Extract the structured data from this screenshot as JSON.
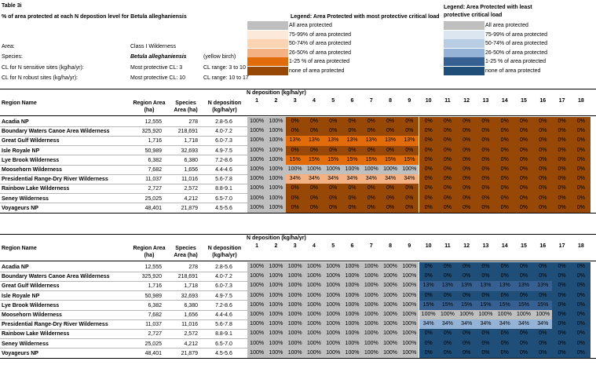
{
  "table_id": "Table 3i",
  "title": "% of area  protected at each N depostion level for Betula alleghaniensis",
  "meta": {
    "area_label": "Area:",
    "area_value": "Class I Wilderness",
    "species_label": "Species:",
    "species_sci": "Betula alleghaniensis",
    "species_common": "(yellow birch)",
    "cl_sensitive_label": "CL for N sensitive sites (kg/ha/yr):",
    "cl_sensitive_value": "Most protective  CL:  3",
    "cl_sensitive_range": "CL range:  3 to 10",
    "cl_robust_label": "CL for N robust sites (kg/ha/yr):",
    "cl_robust_value": "Most protective CL:  10",
    "cl_robust_range": "CL range:   10 to 17"
  },
  "legend_most": {
    "title": "Legend: Area  Protected with most protective critical  load",
    "items": [
      {
        "label": "All area  protected",
        "color": "#bfbfbf"
      },
      {
        "label": "75-99% of area protected",
        "color": "#fde9d9"
      },
      {
        "label": "50-74% of area protected",
        "color": "#fbd4b4"
      },
      {
        "label": "26-50% of area protected",
        "color": "#f4b183"
      },
      {
        "label": "1-25 % of area protected",
        "color": "#e26b0a"
      },
      {
        "label": "none of area  protected",
        "color": "#974706"
      }
    ]
  },
  "legend_least": {
    "title_line1": "Legend: Area  Protected with least",
    "title_line2": "protective critical  load",
    "items": [
      {
        "label": "All area  protected",
        "color": "#bfbfbf"
      },
      {
        "label": "75-99% of area protected",
        "color": "#dce6f1"
      },
      {
        "label": "50-74% of area protected",
        "color": "#b8cce4"
      },
      {
        "label": "26-50% of area protected",
        "color": "#95b3d7"
      },
      {
        "label": "1-25 % of area protected",
        "color": "#366092"
      },
      {
        "label": "none of area  protected",
        "color": "#1f4e79"
      }
    ]
  },
  "headers": {
    "region": "Region Name",
    "region_area_1": "Region Area",
    "region_area_2": "(ha)",
    "species_area_1": "Species",
    "species_area_2": "Area (ha)",
    "ndep_1": "N deposition",
    "ndep_2": "(kg/ha/yr)",
    "ndep_group": "N deposition  (kg/ha/yr)"
  },
  "n_levels": [
    "1",
    "2",
    "3",
    "4",
    "5",
    "6",
    "7",
    "8",
    "9",
    "10",
    "11",
    "12",
    "13",
    "14",
    "15",
    "16",
    "17",
    "18"
  ],
  "regions": [
    {
      "name": "Acadia  NP",
      "area": "12,555",
      "species_area": "278",
      "ndep": "2.8-5.6"
    },
    {
      "name": "Boundary Waters Canoe Area  Wilderness",
      "area": "325,920",
      "species_area": "218,691",
      "ndep": "4.0-7.2"
    },
    {
      "name": "Great Gulf Wilderness",
      "area": "1,716",
      "species_area": "1,718",
      "ndep": "6.0-7.3"
    },
    {
      "name": "Isle Royale  NP",
      "area": "50,989",
      "species_area": "32,693",
      "ndep": "4.9-7.5"
    },
    {
      "name": "Lye Brook Wilderness",
      "area": "6,382",
      "species_area": "6,380",
      "ndep": "7.2-8.6"
    },
    {
      "name": "Moosehorn Wilderness",
      "area": "7,682",
      "species_area": "1,656",
      "ndep": "4.4-4.6"
    },
    {
      "name": "Presidential Range-Dry  River Wilderness",
      "area": "11,037",
      "species_area": "11,016",
      "ndep": "5.6-7.8"
    },
    {
      "name": "Rainbow Lake Wilderness",
      "area": "2,727",
      "species_area": "2,572",
      "ndep": "8.8-9.1"
    },
    {
      "name": "Seney Wilderness",
      "area": "25,025",
      "species_area": "4,212",
      "ndep": "6.5-7.0"
    },
    {
      "name": "Voyageurs  NP",
      "area": "48,401",
      "species_area": "21,879",
      "ndep": "4.5-5.6"
    }
  ],
  "most_values": [
    [
      "100%",
      "100%",
      "0%",
      "0%",
      "0%",
      "0%",
      "0%",
      "0%",
      "0%",
      "0%",
      "0%",
      "0%",
      "0%",
      "0%",
      "0%",
      "0%",
      "0%",
      "0%"
    ],
    [
      "100%",
      "100%",
      "0%",
      "0%",
      "0%",
      "0%",
      "0%",
      "0%",
      "0%",
      "0%",
      "0%",
      "0%",
      "0%",
      "0%",
      "0%",
      "0%",
      "0%",
      "0%"
    ],
    [
      "100%",
      "100%",
      "13%",
      "13%",
      "13%",
      "13%",
      "13%",
      "13%",
      "13%",
      "0%",
      "0%",
      "0%",
      "0%",
      "0%",
      "0%",
      "0%",
      "0%",
      "0%"
    ],
    [
      "100%",
      "100%",
      "0%",
      "0%",
      "0%",
      "0%",
      "0%",
      "0%",
      "0%",
      "0%",
      "0%",
      "0%",
      "0%",
      "0%",
      "0%",
      "0%",
      "0%",
      "0%"
    ],
    [
      "100%",
      "100%",
      "15%",
      "15%",
      "15%",
      "15%",
      "15%",
      "15%",
      "15%",
      "0%",
      "0%",
      "0%",
      "0%",
      "0%",
      "0%",
      "0%",
      "0%",
      "0%"
    ],
    [
      "100%",
      "100%",
      "100%",
      "100%",
      "100%",
      "100%",
      "100%",
      "100%",
      "100%",
      "0%",
      "0%",
      "0%",
      "0%",
      "0%",
      "0%",
      "0%",
      "0%",
      "0%"
    ],
    [
      "100%",
      "100%",
      "34%",
      "34%",
      "34%",
      "34%",
      "34%",
      "34%",
      "34%",
      "0%",
      "0%",
      "0%",
      "0%",
      "0%",
      "0%",
      "0%",
      "0%",
      "0%"
    ],
    [
      "100%",
      "100%",
      "0%",
      "0%",
      "0%",
      "0%",
      "0%",
      "0%",
      "0%",
      "0%",
      "0%",
      "0%",
      "0%",
      "0%",
      "0%",
      "0%",
      "0%",
      "0%"
    ],
    [
      "100%",
      "100%",
      "0%",
      "0%",
      "0%",
      "0%",
      "0%",
      "0%",
      "0%",
      "0%",
      "0%",
      "0%",
      "0%",
      "0%",
      "0%",
      "0%",
      "0%",
      "0%"
    ],
    [
      "100%",
      "100%",
      "0%",
      "0%",
      "0%",
      "0%",
      "0%",
      "0%",
      "0%",
      "0%",
      "0%",
      "0%",
      "0%",
      "0%",
      "0%",
      "0%",
      "0%",
      "0%"
    ]
  ],
  "least_values": [
    [
      "100%",
      "100%",
      "100%",
      "100%",
      "100%",
      "100%",
      "100%",
      "100%",
      "100%",
      "0%",
      "0%",
      "0%",
      "0%",
      "0%",
      "0%",
      "0%",
      "0%",
      "0%"
    ],
    [
      "100%",
      "100%",
      "100%",
      "100%",
      "100%",
      "100%",
      "100%",
      "100%",
      "100%",
      "0%",
      "0%",
      "0%",
      "0%",
      "0%",
      "0%",
      "0%",
      "0%",
      "0%"
    ],
    [
      "100%",
      "100%",
      "100%",
      "100%",
      "100%",
      "100%",
      "100%",
      "100%",
      "100%",
      "13%",
      "13%",
      "13%",
      "13%",
      "13%",
      "13%",
      "13%",
      "0%",
      "0%"
    ],
    [
      "100%",
      "100%",
      "100%",
      "100%",
      "100%",
      "100%",
      "100%",
      "100%",
      "100%",
      "0%",
      "0%",
      "0%",
      "0%",
      "0%",
      "0%",
      "0%",
      "0%",
      "0%"
    ],
    [
      "100%",
      "100%",
      "100%",
      "100%",
      "100%",
      "100%",
      "100%",
      "100%",
      "100%",
      "15%",
      "15%",
      "15%",
      "15%",
      "15%",
      "15%",
      "15%",
      "0%",
      "0%"
    ],
    [
      "100%",
      "100%",
      "100%",
      "100%",
      "100%",
      "100%",
      "100%",
      "100%",
      "100%",
      "100%",
      "100%",
      "100%",
      "100%",
      "100%",
      "100%",
      "100%",
      "0%",
      "0%"
    ],
    [
      "100%",
      "100%",
      "100%",
      "100%",
      "100%",
      "100%",
      "100%",
      "100%",
      "100%",
      "34%",
      "34%",
      "34%",
      "34%",
      "34%",
      "34%",
      "34%",
      "0%",
      "0%"
    ],
    [
      "100%",
      "100%",
      "100%",
      "100%",
      "100%",
      "100%",
      "100%",
      "100%",
      "100%",
      "0%",
      "0%",
      "0%",
      "0%",
      "0%",
      "0%",
      "0%",
      "0%",
      "0%"
    ],
    [
      "100%",
      "100%",
      "100%",
      "100%",
      "100%",
      "100%",
      "100%",
      "100%",
      "100%",
      "0%",
      "0%",
      "0%",
      "0%",
      "0%",
      "0%",
      "0%",
      "0%",
      "0%"
    ],
    [
      "100%",
      "100%",
      "100%",
      "100%",
      "100%",
      "100%",
      "100%",
      "100%",
      "100%",
      "0%",
      "0%",
      "0%",
      "0%",
      "0%",
      "0%",
      "0%",
      "0%",
      "0%"
    ]
  ]
}
